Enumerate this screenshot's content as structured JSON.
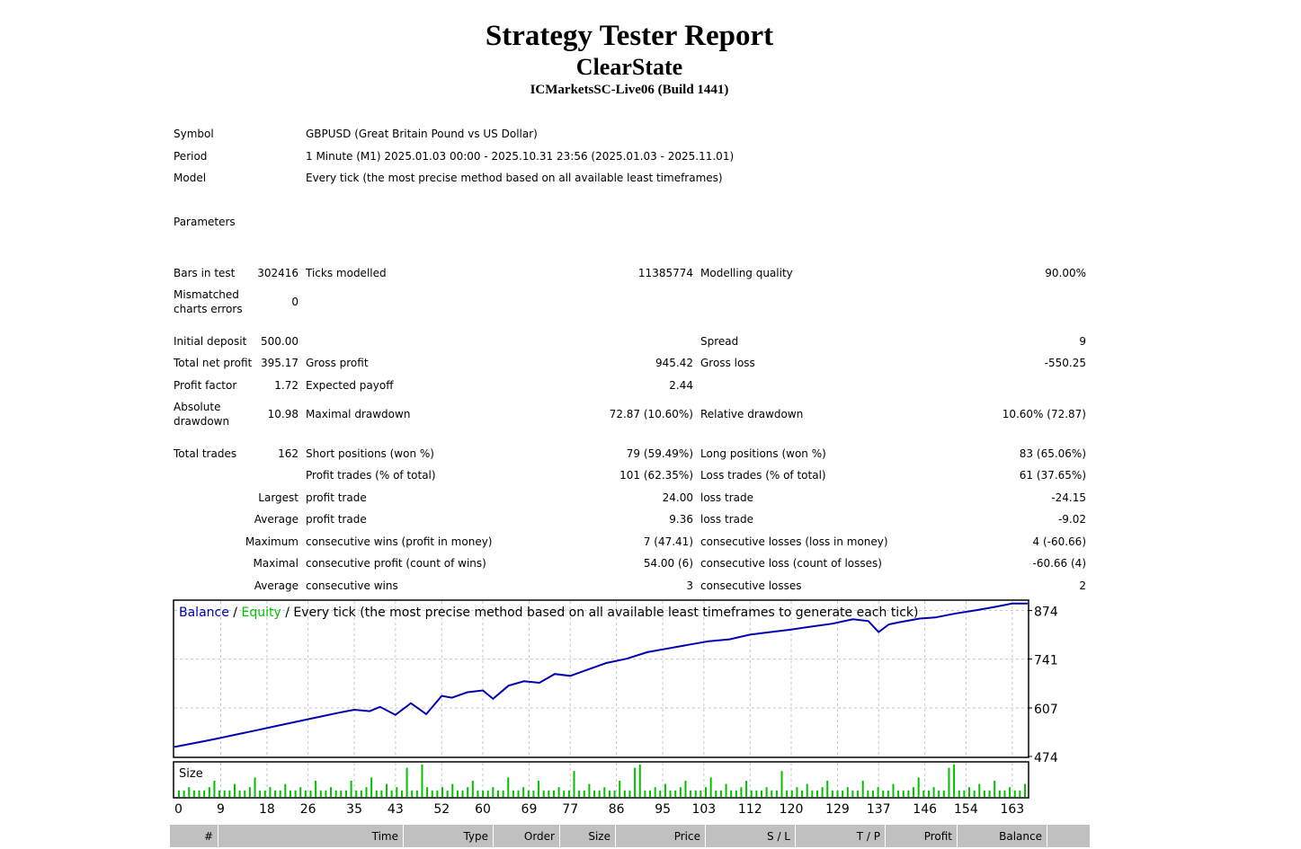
{
  "header": {
    "title": "Strategy Tester Report",
    "subtitle": "ClearState",
    "server": "ICMarketsSC-Live06 (Build 1441)"
  },
  "info": {
    "symbol_label": "Symbol",
    "symbol_value": "GBPUSD (Great Britain Pound vs US Dollar)",
    "period_label": "Period",
    "period_value": "1 Minute (M1) 2025.01.03 00:00 - 2025.10.31 23:56 (2025.01.03 - 2025.11.01)",
    "model_label": "Model",
    "model_value": "Every tick (the most precise method based on all available least timeframes)",
    "parameters_label": "Parameters"
  },
  "stats": {
    "bars_label": "Bars in test",
    "bars_value": "302416",
    "ticks_label": "Ticks modelled",
    "ticks_value": "11385774",
    "quality_label": "Modelling quality",
    "quality_value": "90.00%",
    "mismatch_label": "Mismatched charts errors",
    "mismatch_value": "0",
    "deposit_label": "Initial deposit",
    "deposit_value": "500.00",
    "spread_label": "Spread",
    "spread_value": "9",
    "net_label": "Total net profit",
    "net_value": "395.17",
    "gross_profit_label": "Gross profit",
    "gross_profit_value": "945.42",
    "gross_loss_label": "Gross loss",
    "gross_loss_value": "-550.25",
    "pf_label": "Profit factor",
    "pf_value": "1.72",
    "payoff_label": "Expected payoff",
    "payoff_value": "2.44",
    "abs_dd_label": "Absolute drawdown",
    "abs_dd_value": "10.98",
    "max_dd_label": "Maximal drawdown",
    "max_dd_value": "72.87 (10.60%)",
    "rel_dd_label": "Relative drawdown",
    "rel_dd_value": "10.60% (72.87)",
    "trades_label": "Total trades",
    "trades_value": "162",
    "short_label": "Short positions (won %)",
    "short_value": "79 (59.49%)",
    "long_label": "Long positions (won %)",
    "long_value": "83 (65.06%)",
    "profit_trades_label": "Profit trades (% of total)",
    "profit_trades_value": "101 (62.35%)",
    "loss_trades_label": "Loss trades (% of total)",
    "loss_trades_value": "61 (37.65%)",
    "largest_label": "Largest",
    "largest_profit_label": "profit trade",
    "largest_profit_value": "24.00",
    "largest_loss_label": "loss trade",
    "largest_loss_value": "-24.15",
    "average_label": "Average",
    "avg_profit_label": "profit trade",
    "avg_profit_value": "9.36",
    "avg_loss_label": "loss trade",
    "avg_loss_value": "-9.02",
    "maximum_label": "Maximum",
    "max_wins_label": "consecutive wins (profit in money)",
    "max_wins_value": "7 (47.41)",
    "max_losses_label": "consecutive losses (loss in money)",
    "max_losses_value": "4 (-60.66)",
    "maximal_label": "Maximal",
    "mcp_label": "consecutive profit (count of wins)",
    "mcp_value": "54.00 (6)",
    "mcl_label": "consecutive loss (count of losses)",
    "mcl_value": "-60.66 (4)",
    "average2_label": "Average",
    "acw_label": "consecutive wins",
    "acw_value": "3",
    "acl_label": "consecutive losses",
    "acl_value": "2"
  },
  "chart_data": {
    "type": "line",
    "legend": {
      "balance": "Balance",
      "sep1": " / ",
      "equity": "Equity",
      "sep2": " / ",
      "mode": "Every tick (the most precise method based on all available least timeframes to generate each tick)"
    },
    "colors": {
      "balance": "#0000b0",
      "equity": "#00c000",
      "size": "#00c000",
      "grid": "#c8c8c8"
    },
    "y_ticks": [
      "874",
      "741",
      "607",
      "474"
    ],
    "y_tick_values": [
      874,
      741,
      607,
      474
    ],
    "ylim": [
      474,
      900
    ],
    "xlim": [
      0,
      166
    ],
    "x_ticks": [
      "0",
      "9",
      "18",
      "26",
      "35",
      "43",
      "52",
      "60",
      "69",
      "77",
      "86",
      "95",
      "103",
      "112",
      "120",
      "129",
      "137",
      "146",
      "154",
      "163"
    ],
    "x_tick_values": [
      0,
      9,
      18,
      26,
      35,
      43,
      52,
      60,
      69,
      77,
      86,
      95,
      103,
      112,
      120,
      129,
      137,
      146,
      154,
      163
    ],
    "series": [
      {
        "name": "Balance",
        "x": [
          0,
          4,
          8,
          12,
          16,
          20,
          24,
          28,
          32,
          35,
          38,
          40,
          43,
          46,
          49,
          52,
          54,
          57,
          60,
          62,
          65,
          68,
          71,
          74,
          77,
          80,
          84,
          88,
          92,
          96,
          100,
          104,
          108,
          112,
          116,
          120,
          124,
          128,
          132,
          135,
          137,
          139,
          141,
          145,
          148,
          152,
          156,
          160,
          163,
          166
        ],
        "values": [
          500,
          511,
          522,
          534,
          546,
          558,
          570,
          582,
          594,
          602,
          598,
          610,
          588,
          620,
          590,
          640,
          635,
          650,
          655,
          632,
          668,
          680,
          676,
          700,
          695,
          710,
          730,
          742,
          760,
          770,
          780,
          790,
          795,
          808,
          815,
          822,
          830,
          838,
          850,
          845,
          815,
          836,
          842,
          852,
          855,
          866,
          875,
          885,
          893,
          893
        ]
      }
    ],
    "size_panel": {
      "label": "Size",
      "bars": [
        2,
        2,
        3,
        2,
        2,
        2,
        3,
        5,
        2,
        2,
        2,
        4,
        2,
        2,
        3,
        6,
        2,
        2,
        3,
        2,
        2,
        4,
        2,
        2,
        3,
        2,
        2,
        5,
        2,
        2,
        3,
        2,
        2,
        2,
        5,
        2,
        2,
        3,
        6,
        2,
        2,
        4,
        2,
        3,
        2,
        9,
        2,
        2,
        10,
        3,
        2,
        2,
        3,
        2,
        4,
        2,
        2,
        3,
        5,
        2,
        2,
        2,
        3,
        2,
        2,
        6,
        2,
        2,
        3,
        2,
        2,
        5,
        2,
        2,
        2,
        3,
        2,
        2,
        8,
        2,
        2,
        4,
        2,
        2,
        3,
        2,
        2,
        5,
        2,
        2,
        9,
        10,
        2,
        2,
        3,
        2,
        4,
        2,
        2,
        3,
        5,
        2,
        2,
        2,
        3,
        6,
        2,
        2,
        4,
        2,
        2,
        3,
        5,
        2,
        2,
        2,
        3,
        2,
        2,
        8,
        2,
        2,
        3,
        2,
        4,
        2,
        2,
        3,
        5,
        2,
        2,
        2,
        3,
        2,
        2,
        5,
        2,
        2,
        3,
        2,
        2,
        4,
        2,
        2,
        2,
        3,
        6,
        2,
        2,
        3,
        2,
        2,
        9,
        10,
        2,
        2,
        3,
        2,
        4,
        2,
        2,
        5,
        2,
        2,
        3,
        2,
        2,
        4
      ]
    }
  },
  "table": {
    "columns": [
      "#",
      "Time",
      "Type",
      "Order",
      "Size",
      "Price",
      "S / L",
      "T / P",
      "Profit",
      "Balance"
    ]
  }
}
